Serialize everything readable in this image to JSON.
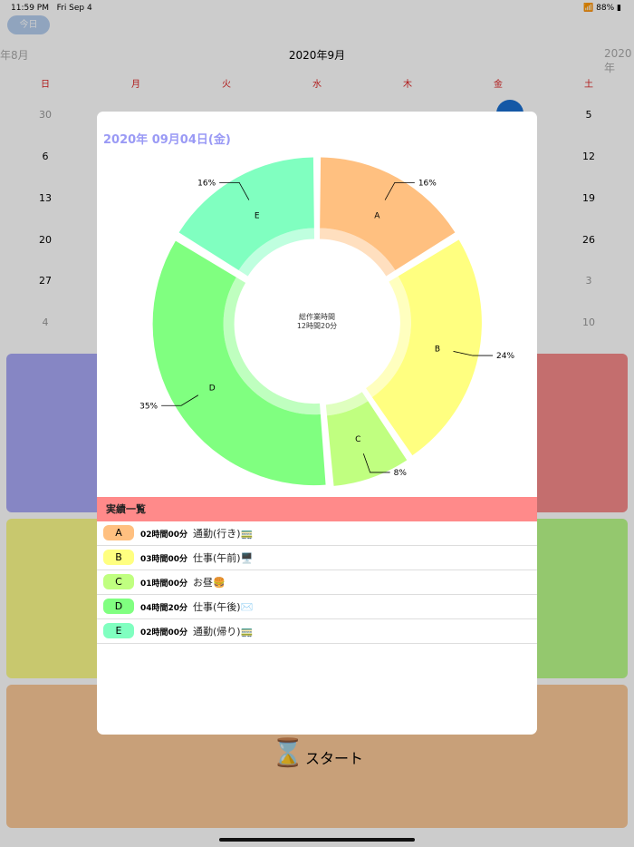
{
  "status": {
    "time": "11:59 PM",
    "date": "Fri Sep 4",
    "battery": "88%"
  },
  "calendar": {
    "today_button": "今日",
    "prev_month": "年8月",
    "current_month": "2020年9月",
    "next_month": "2020年",
    "weekdays": [
      "日",
      "月",
      "火",
      "水",
      "木",
      "金",
      "土"
    ],
    "sunday": [
      "30",
      "6",
      "13",
      "20",
      "27",
      "4"
    ],
    "saturday": [
      "5",
      "12",
      "19",
      "26",
      "3",
      "10"
    ]
  },
  "start_button": {
    "label": "スタート",
    "icon": "hourglass-icon"
  },
  "modal": {
    "title": "2020年 09月04日(金)",
    "center_label": "総作業時間",
    "center_value": "12時間20分",
    "list_header": "実績一覧",
    "items": [
      {
        "key": "A",
        "duration": "02時間00分",
        "name": "通勤(行き)🚃",
        "color": "#FFC080"
      },
      {
        "key": "B",
        "duration": "03時間00分",
        "name": "仕事(午前)🖥️",
        "color": "#FFFF80"
      },
      {
        "key": "C",
        "duration": "01時間00分",
        "name": "お昼🍔",
        "color": "#C0FF80"
      },
      {
        "key": "D",
        "duration": "04時間20分",
        "name": "仕事(午後)✉️",
        "color": "#80FF80"
      },
      {
        "key": "E",
        "duration": "02時間00分",
        "name": "通勤(帰り)🚃",
        "color": "#80FFC0"
      }
    ]
  },
  "chart_data": {
    "type": "pie",
    "donut": true,
    "categories": [
      "A",
      "B",
      "C",
      "D",
      "E"
    ],
    "values": [
      120,
      180,
      60,
      260,
      120
    ],
    "percent_labels": [
      "16%",
      "24%",
      "8%",
      "35%",
      "16%"
    ],
    "colors": [
      "#FFC080",
      "#FFFF80",
      "#C0FF80",
      "#80FF80",
      "#80FFC0"
    ]
  }
}
